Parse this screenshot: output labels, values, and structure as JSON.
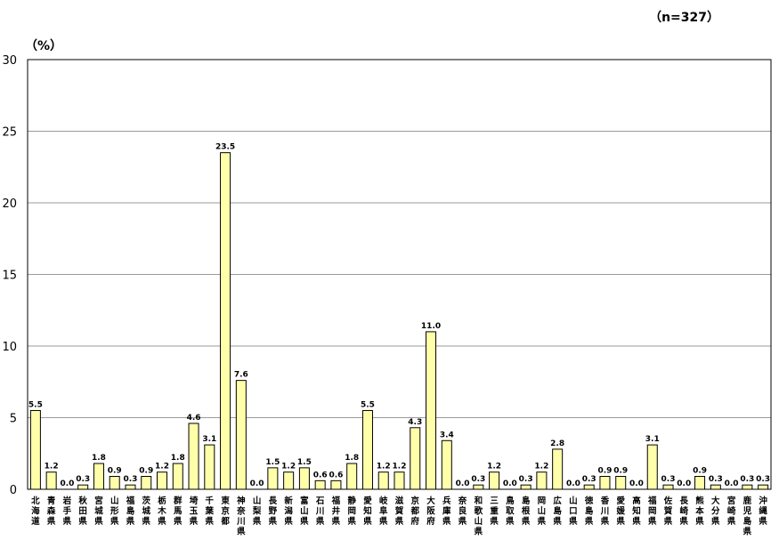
{
  "chart_data": {
    "type": "bar",
    "annotation_n": "（n=327）",
    "ylabel": "（%）",
    "ylim": [
      0,
      30
    ],
    "yticks": [
      0,
      5,
      10,
      15,
      20,
      25,
      30
    ],
    "grid": true,
    "legend": "none",
    "bar_color": "#FFFFAA",
    "bar_edge": "#000000",
    "categories": [
      "北海道",
      "青森県",
      "岩手県",
      "秋田県",
      "宮城県",
      "山形県",
      "福島県",
      "茨城県",
      "栃木県",
      "群馬県",
      "埼玉県",
      "千葉県",
      "東京都",
      "神奈川県",
      "山梨県",
      "長野県",
      "新潟県",
      "富山県",
      "石川県",
      "福井県",
      "静岡県",
      "愛知県",
      "岐阜県",
      "滋賀県",
      "京都府",
      "大阪府",
      "兵庫県",
      "奈良県",
      "和歌山県",
      "三重県",
      "鳥取県",
      "島根県",
      "岡山県",
      "広島県",
      "山口県",
      "徳島県",
      "香川県",
      "愛媛県",
      "高知県",
      "福岡県",
      "佐賀県",
      "長崎県",
      "熊本県",
      "大分県",
      "宮崎県",
      "鹿児島県",
      "沖縄県"
    ],
    "values": [
      5.5,
      1.2,
      0.0,
      0.3,
      1.8,
      0.9,
      0.3,
      0.9,
      1.2,
      1.8,
      4.6,
      3.1,
      23.5,
      7.6,
      0.0,
      1.5,
      1.2,
      1.5,
      0.6,
      0.6,
      1.8,
      5.5,
      1.2,
      1.2,
      4.3,
      11.0,
      3.4,
      0.0,
      0.3,
      1.2,
      0.0,
      0.3,
      1.2,
      2.8,
      0.0,
      0.3,
      0.9,
      0.9,
      0.0,
      3.1,
      0.3,
      0.0,
      0.9,
      0.3,
      0.0,
      0.3,
      0.3
    ]
  }
}
